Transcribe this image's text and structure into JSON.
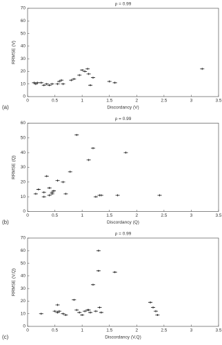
{
  "chart_data": [
    {
      "type": "scatter",
      "title": "ρ = 0.99",
      "panel_label": "(a)",
      "x_label": "Discordancy (V)",
      "y_label": "RRMSE (V)",
      "x": [
        0.12,
        0.15,
        0.18,
        0.25,
        0.3,
        0.35,
        0.4,
        0.45,
        0.55,
        0.58,
        0.62,
        0.65,
        0.8,
        0.85,
        0.95,
        1.0,
        1.05,
        1.1,
        1.12,
        1.15,
        1.2,
        1.5,
        1.6,
        3.2
      ],
      "values": [
        11,
        10,
        11,
        11,
        9,
        10,
        9,
        10,
        10,
        12,
        13,
        10,
        13,
        14,
        17,
        21,
        20,
        22,
        18,
        9,
        15,
        12,
        11,
        22
      ],
      "xlim": [
        0,
        3.5
      ],
      "ylim": [
        0,
        70
      ],
      "xticks": [
        0,
        0.5,
        1,
        1.5,
        2,
        2.5,
        3,
        3.5
      ],
      "yticks": [
        0,
        10,
        20,
        30,
        40,
        50,
        60,
        70
      ]
    },
    {
      "type": "scatter",
      "title": "ρ = 0.99",
      "panel_label": "(b)",
      "x_label": "Discordancy (Q)",
      "y_label": "RRMSE (Q)",
      "x": [
        0.15,
        0.2,
        0.3,
        0.3,
        0.35,
        0.4,
        0.4,
        0.45,
        0.45,
        0.48,
        0.55,
        0.65,
        0.7,
        0.78,
        0.9,
        1.12,
        1.2,
        1.25,
        1.32,
        1.35,
        1.65,
        1.8,
        2.42
      ],
      "values": [
        12,
        15,
        13,
        10,
        24,
        16,
        11,
        13,
        12,
        14,
        21,
        20,
        12,
        27,
        52,
        35,
        43,
        10,
        11,
        11,
        11,
        40,
        11
      ],
      "xlim": [
        0,
        3.5
      ],
      "ylim": [
        0,
        60
      ],
      "xticks": [
        0,
        0.5,
        1,
        1.5,
        2,
        2.5,
        3,
        3.5
      ],
      "yticks": [
        0,
        10,
        20,
        30,
        40,
        50,
        60
      ]
    },
    {
      "type": "scatter",
      "title": "ρ = 0.99",
      "panel_label": "(c)",
      "x_label": "Discordancy (V,Q)",
      "y_label": "RRMSE (V,Q)",
      "x": [
        0.25,
        0.5,
        0.55,
        0.55,
        0.58,
        0.65,
        0.7,
        0.85,
        0.9,
        0.95,
        1.0,
        1.05,
        1.1,
        1.12,
        1.15,
        1.2,
        1.25,
        1.3,
        1.3,
        1.32,
        1.35,
        1.6,
        2.25,
        2.3,
        2.35,
        2.38
      ],
      "values": [
        10,
        12,
        17,
        11,
        12,
        10,
        9,
        21,
        13,
        11,
        9,
        12,
        13,
        13,
        11,
        33,
        12,
        60,
        44,
        15,
        11,
        43,
        19,
        15,
        12,
        9
      ],
      "xlim": [
        0,
        3.5
      ],
      "ylim": [
        0,
        70
      ],
      "xticks": [
        0,
        0.5,
        1,
        1.5,
        2,
        2.5,
        3,
        3.5
      ],
      "yticks": [
        0,
        10,
        20,
        30,
        40,
        50,
        60,
        70
      ]
    }
  ]
}
